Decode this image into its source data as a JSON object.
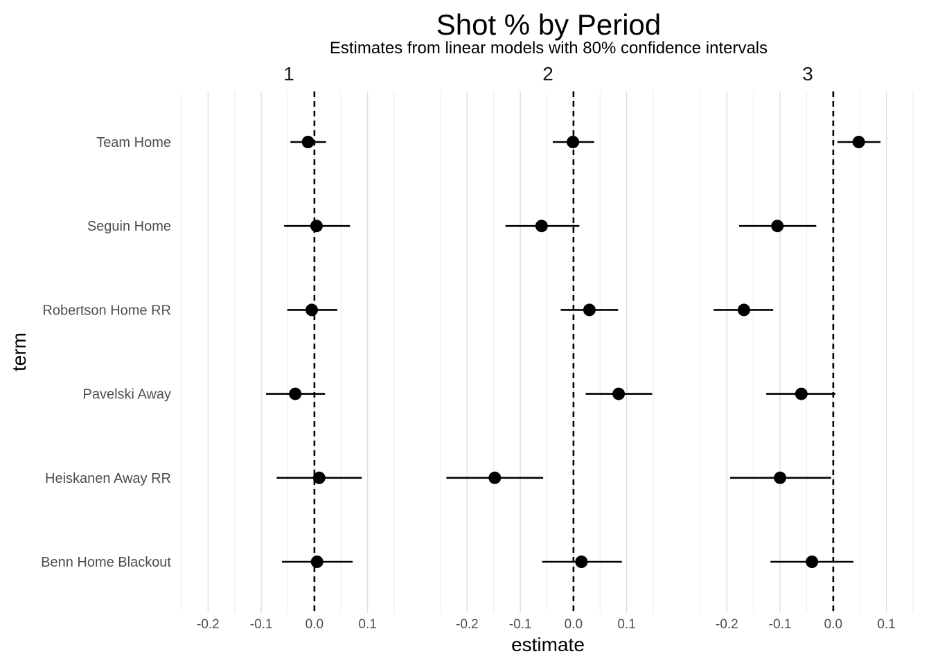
{
  "chart_data": {
    "type": "scatter",
    "title": "Shot % by Period",
    "subtitle": "Estimates from linear models with 80% confidence intervals",
    "xlabel": "estimate",
    "ylabel": "term",
    "xlim": [
      -0.25,
      0.15
    ],
    "xticks": [
      -0.2,
      -0.1,
      0.0,
      0.1
    ],
    "xtick_labels": [
      "-0.2",
      "-0.1",
      "0.0",
      "0.1"
    ],
    "reference_line": 0.0,
    "grid": "vertical",
    "terms": [
      "Team Home",
      "Seguin Home",
      "Robertson Home RR",
      "Pavelski Away",
      "Heiskanen Away RR",
      "Benn Home Blackout"
    ],
    "facets": [
      {
        "label": "1",
        "points": [
          {
            "term": "Team Home",
            "estimate": -0.012,
            "low": -0.045,
            "high": 0.022
          },
          {
            "term": "Seguin Home",
            "estimate": 0.004,
            "low": -0.057,
            "high": 0.067
          },
          {
            "term": "Robertson Home RR",
            "estimate": -0.005,
            "low": -0.051,
            "high": 0.043
          },
          {
            "term": "Pavelski Away",
            "estimate": -0.036,
            "low": -0.091,
            "high": 0.02
          },
          {
            "term": "Heiskanen Away RR",
            "estimate": 0.009,
            "low": -0.071,
            "high": 0.089
          },
          {
            "term": "Benn Home Blackout",
            "estimate": 0.005,
            "low": -0.061,
            "high": 0.072
          }
        ]
      },
      {
        "label": "2",
        "points": [
          {
            "term": "Team Home",
            "estimate": -0.001,
            "low": -0.039,
            "high": 0.039
          },
          {
            "term": "Seguin Home",
            "estimate": -0.06,
            "low": -0.128,
            "high": 0.011
          },
          {
            "term": "Robertson Home RR",
            "estimate": 0.03,
            "low": -0.024,
            "high": 0.084
          },
          {
            "term": "Pavelski Away",
            "estimate": 0.085,
            "low": 0.023,
            "high": 0.148
          },
          {
            "term": "Heiskanen Away RR",
            "estimate": -0.148,
            "low": -0.239,
            "high": -0.057
          },
          {
            "term": "Benn Home Blackout",
            "estimate": 0.015,
            "low": -0.059,
            "high": 0.091
          }
        ]
      },
      {
        "label": "3",
        "points": [
          {
            "term": "Team Home",
            "estimate": 0.048,
            "low": 0.008,
            "high": 0.089
          },
          {
            "term": "Seguin Home",
            "estimate": -0.105,
            "low": -0.177,
            "high": -0.032
          },
          {
            "term": "Robertson Home RR",
            "estimate": -0.168,
            "low": -0.225,
            "high": -0.113
          },
          {
            "term": "Pavelski Away",
            "estimate": -0.06,
            "low": -0.126,
            "high": 0.004
          },
          {
            "term": "Heiskanen Away RR",
            "estimate": -0.1,
            "low": -0.194,
            "high": -0.004
          },
          {
            "term": "Benn Home Blackout",
            "estimate": -0.04,
            "low": -0.118,
            "high": 0.038
          }
        ]
      }
    ]
  }
}
